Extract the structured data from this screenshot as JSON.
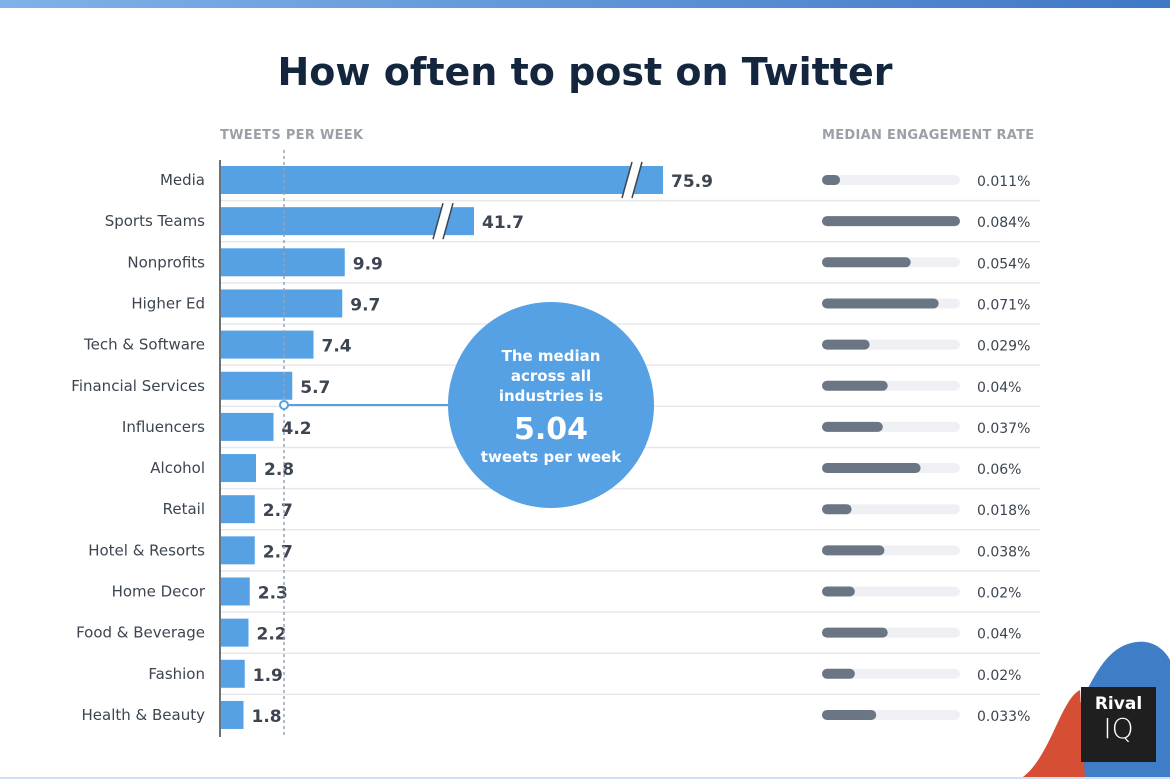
{
  "title": "How often to post on Twitter",
  "chart_data": {
    "type": "bar",
    "title": "How often to post on Twitter",
    "xlabel": "TWEETS PER WEEK",
    "ylabel": "",
    "categories": [
      "Media",
      "Sports Teams",
      "Nonprofits",
      "Higher Ed",
      "Tech & Software",
      "Financial Services",
      "Influencers",
      "Alcohol",
      "Retail",
      "Hotel & Resorts",
      "Home Decor",
      "Food & Beverage",
      "Fashion",
      "Health & Beauty"
    ],
    "series": [
      {
        "name": "Tweets per week",
        "values": [
          75.9,
          41.7,
          9.9,
          9.7,
          7.4,
          5.7,
          4.2,
          2.8,
          2.7,
          2.7,
          2.3,
          2.2,
          1.9,
          1.8
        ],
        "labels": [
          "75.9",
          "41.7",
          "9.9",
          "9.7",
          "7.4",
          "5.7",
          "4.2",
          "2.8",
          "2.7",
          "2.7",
          "2.3",
          "2.2",
          "1.9",
          "1.8"
        ]
      },
      {
        "name": "MEDIAN ENGAGEMENT RATE",
        "values": [
          0.011,
          0.084,
          0.054,
          0.071,
          0.029,
          0.04,
          0.037,
          0.06,
          0.018,
          0.038,
          0.02,
          0.04,
          0.02,
          0.033
        ],
        "labels": [
          "0.011%",
          "0.084%",
          "0.054%",
          "0.071%",
          "0.029%",
          "0.04%",
          "0.037%",
          "0.06%",
          "0.018%",
          "0.038%",
          "0.02%",
          "0.04%",
          "0.02%",
          "0.033%"
        ]
      }
    ],
    "broken_axis_bars": [
      "Media",
      "Sports Teams"
    ],
    "median": 5.04,
    "annotation": {
      "line1": "The median",
      "line2": "across all",
      "line3": "industries is",
      "value": "5.04",
      "line4": "tweets per week"
    },
    "colors": {
      "bar": "#55a1e4",
      "rate_bar": "#6b7685",
      "rate_track": "#eef0f3",
      "bubble": "#55a1e4"
    }
  },
  "headers": {
    "left": "TWEETS PER WEEK",
    "right": "MEDIAN ENGAGEMENT RATE"
  },
  "logo": {
    "line1": "Rival",
    "line2": "IQ"
  }
}
